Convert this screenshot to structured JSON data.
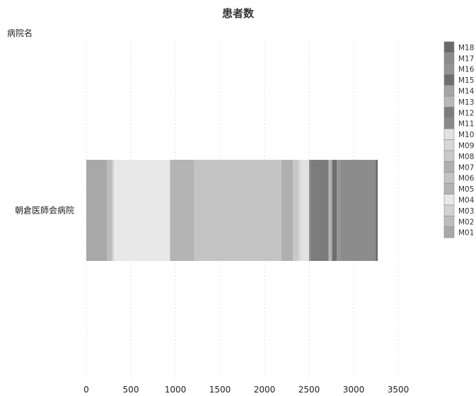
{
  "chart_data": {
    "type": "bar",
    "orientation": "horizontal",
    "stacked": true,
    "title": "患者数",
    "ylabel": "病院名",
    "xlabel": "",
    "categories": [
      "朝倉医師会病院"
    ],
    "xlim": [
      0,
      3500
    ],
    "xticks": [
      0,
      500,
      1000,
      1500,
      2000,
      2500,
      3000,
      3500
    ],
    "grid": true,
    "legend_position": "right",
    "series": [
      {
        "name": "M01",
        "values": [
          230
        ],
        "color": "#a8a8a8"
      },
      {
        "name": "M02",
        "values": [
          60
        ],
        "color": "#bcbcbc"
      },
      {
        "name": "M03",
        "values": [
          20
        ],
        "color": "#d2d2d2"
      },
      {
        "name": "M04",
        "values": [
          630
        ],
        "color": "#e8e8e8"
      },
      {
        "name": "M05",
        "values": [
          270
        ],
        "color": "#b4b4b4"
      },
      {
        "name": "M06",
        "values": [
          980
        ],
        "color": "#c4c4c4"
      },
      {
        "name": "M07",
        "values": [
          130
        ],
        "color": "#b0b0b0"
      },
      {
        "name": "M08",
        "values": [
          60
        ],
        "color": "#c8c8c8"
      },
      {
        "name": "M09",
        "values": [
          30
        ],
        "color": "#d6d6d6"
      },
      {
        "name": "M10",
        "values": [
          90
        ],
        "color": "#e2e2e2"
      },
      {
        "name": "M11",
        "values": [
          20
        ],
        "color": "#8a8a8a"
      },
      {
        "name": "M12",
        "values": [
          200
        ],
        "color": "#7c7c7c"
      },
      {
        "name": "M13",
        "values": [
          20
        ],
        "color": "#b8b8b8"
      },
      {
        "name": "M14",
        "values": [
          20
        ],
        "color": "#a4a4a4"
      },
      {
        "name": "M15",
        "values": [
          50
        ],
        "color": "#6e6e6e"
      },
      {
        "name": "M16",
        "values": [
          40
        ],
        "color": "#949494"
      },
      {
        "name": "M17",
        "values": [
          400
        ],
        "color": "#8c8c8c"
      },
      {
        "name": "M18",
        "values": [
          20
        ],
        "color": "#6a6a6a"
      }
    ]
  }
}
